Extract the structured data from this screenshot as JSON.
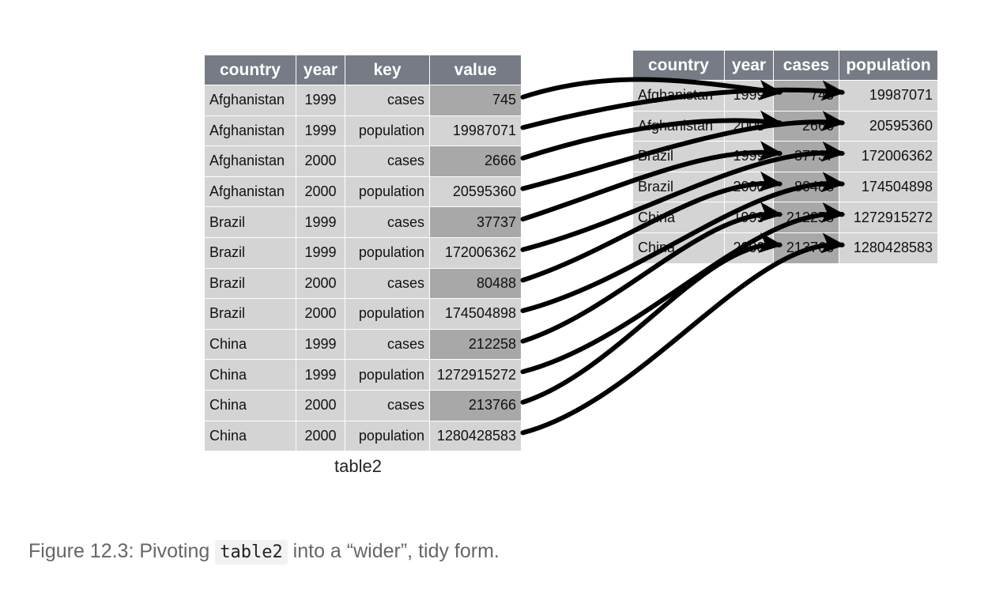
{
  "long_table": {
    "name": "table2",
    "headers": [
      "country",
      "year",
      "key",
      "value"
    ],
    "rows": [
      [
        "Afghanistan",
        "1999",
        "cases",
        "745"
      ],
      [
        "Afghanistan",
        "1999",
        "population",
        "19987071"
      ],
      [
        "Afghanistan",
        "2000",
        "cases",
        "2666"
      ],
      [
        "Afghanistan",
        "2000",
        "population",
        "20595360"
      ],
      [
        "Brazil",
        "1999",
        "cases",
        "37737"
      ],
      [
        "Brazil",
        "1999",
        "population",
        "172006362"
      ],
      [
        "Brazil",
        "2000",
        "cases",
        "80488"
      ],
      [
        "Brazil",
        "2000",
        "population",
        "174504898"
      ],
      [
        "China",
        "1999",
        "cases",
        "212258"
      ],
      [
        "China",
        "1999",
        "population",
        "1272915272"
      ],
      [
        "China",
        "2000",
        "cases",
        "213766"
      ],
      [
        "China",
        "2000",
        "population",
        "1280428583"
      ]
    ]
  },
  "wide_table": {
    "headers": [
      "country",
      "year",
      "cases",
      "population"
    ],
    "rows": [
      [
        "Afghanistan",
        "1999",
        "745",
        "19987071"
      ],
      [
        "Afghanistan",
        "2000",
        "2666",
        "20595360"
      ],
      [
        "Brazil",
        "1999",
        "37737",
        "172006362"
      ],
      [
        "Brazil",
        "2000",
        "80488",
        "174504898"
      ],
      [
        "China",
        "1999",
        "212258",
        "1272915272"
      ],
      [
        "China",
        "2000",
        "213766",
        "1280428583"
      ]
    ]
  },
  "colors": {
    "header_bg": "#767b85",
    "cell_bg": "#d4d4d4",
    "highlight_bg": "#a8a8a8",
    "arrow": "#000000"
  },
  "caption": {
    "prefix": "Figure 12.3: Pivoting ",
    "code": "table2",
    "suffix": " into a “wider”, tidy form."
  }
}
